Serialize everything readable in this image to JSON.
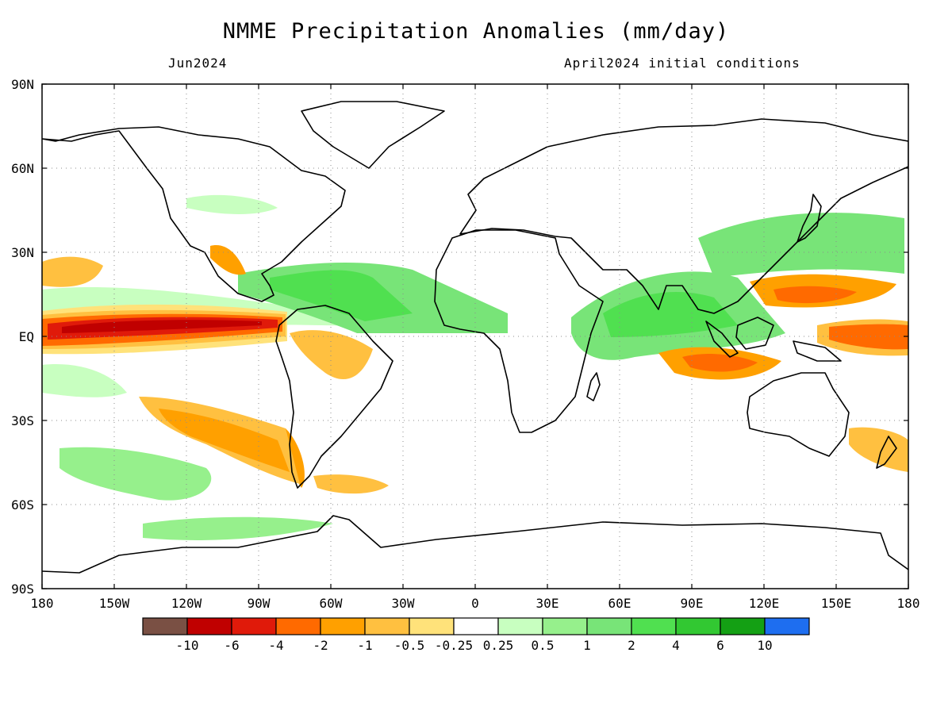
{
  "title": "NMME Precipitation Anomalies (mm/day)",
  "valid_month": "Jun2024",
  "initial_conditions": "April2024 initial conditions",
  "map": {
    "lon_labels": [
      "180",
      "150W",
      "120W",
      "90W",
      "60W",
      "30W",
      "0",
      "30E",
      "60E",
      "90E",
      "120E",
      "150E",
      "180"
    ],
    "lat_labels": [
      "90N",
      "60N",
      "30N",
      "EQ",
      "30S",
      "60S",
      "90S"
    ],
    "grid": "dotted",
    "land_outline_color": "#000000"
  },
  "colorbar": {
    "colors": [
      "#7a5044",
      "#c00000",
      "#e01a0a",
      "#ff6a00",
      "#ffa000",
      "#ffc040",
      "#ffe27a",
      "#ffffff",
      "#c8ffc0",
      "#96f08c",
      "#78e478",
      "#50e050",
      "#32c832",
      "#14a014",
      "#1e6ef0"
    ],
    "labels": [
      "-10",
      "-6",
      "-4",
      "-2",
      "-1",
      "-0.5",
      "-0.25",
      "0.25",
      "0.5",
      "1",
      "2",
      "4",
      "6",
      "10"
    ]
  }
}
